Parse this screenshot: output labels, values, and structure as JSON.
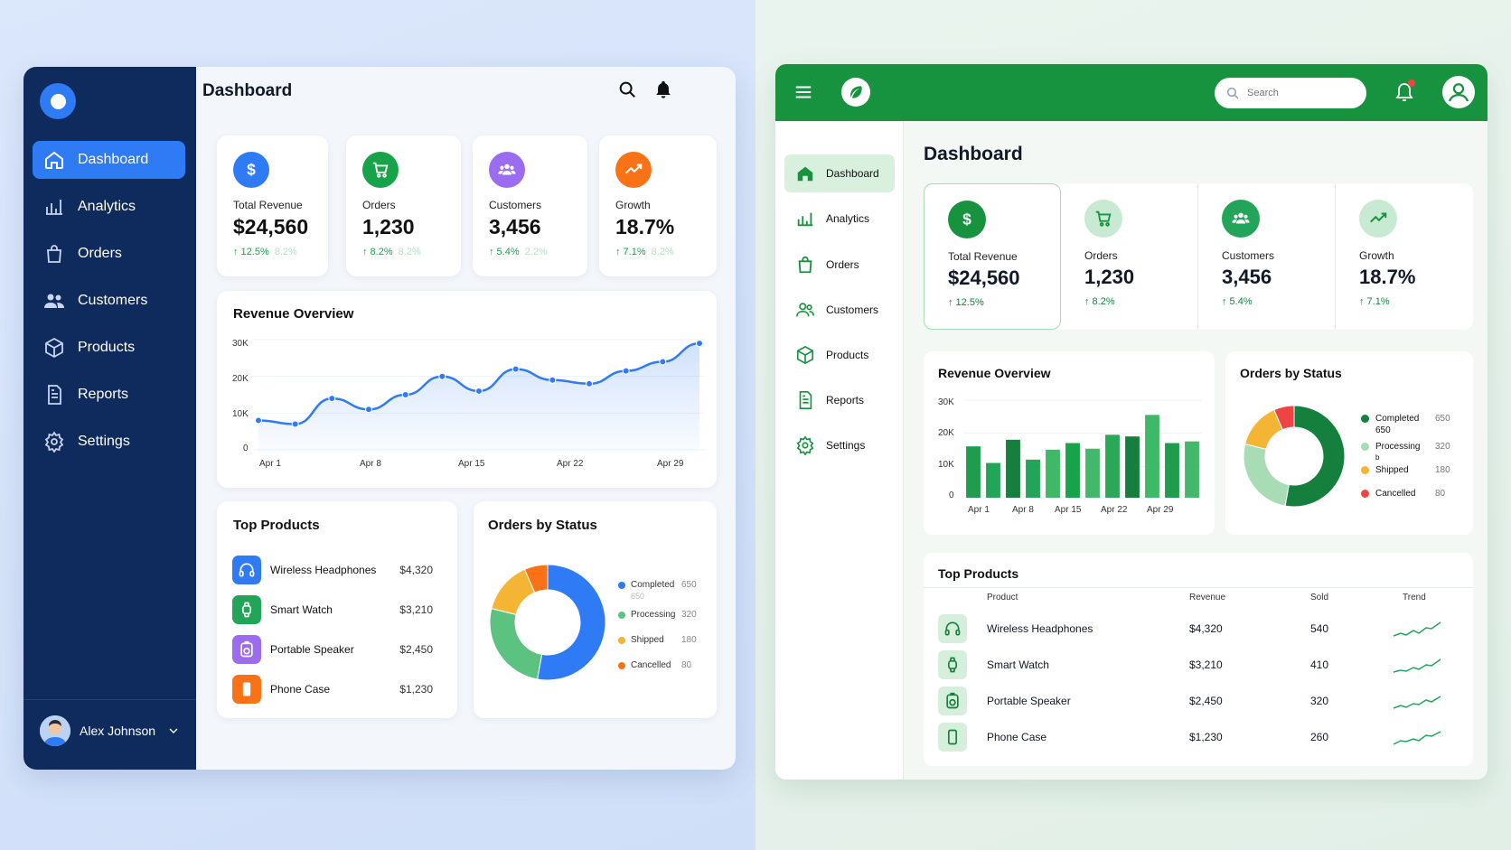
{
  "left": {
    "title": "Dashboard",
    "nav": [
      {
        "label": "Dashboard",
        "icon": "home-icon"
      },
      {
        "label": "Analytics",
        "icon": "bar-chart-icon"
      },
      {
        "label": "Orders",
        "icon": "bag-icon"
      },
      {
        "label": "Customers",
        "icon": "users-icon"
      },
      {
        "label": "Products",
        "icon": "box-icon"
      },
      {
        "label": "Reports",
        "icon": "document-icon"
      },
      {
        "label": "Settings",
        "icon": "gear-icon"
      }
    ],
    "user": "Alex Johnson",
    "stats": [
      {
        "label": "Total Revenue",
        "value": "$24,560",
        "change": "↑ 12.5%",
        "faded": "8.2%",
        "color": "#2f7bf5",
        "icon": "dollar-icon"
      },
      {
        "label": "Orders",
        "value": "1,230",
        "change": "↑ 8.2%",
        "faded": "8.2%",
        "color": "#16a34a",
        "icon": "cart-icon"
      },
      {
        "label": "Customers",
        "value": "3,456",
        "change": "↑ 5.4%",
        "faded": "2.2%",
        "color": "#9b6cf0",
        "icon": "users-icon"
      },
      {
        "label": "Growth",
        "value": "18.7%",
        "change": "↑ 7.1%",
        "faded": "8.2%",
        "color": "#f97316",
        "icon": "trend-icon"
      }
    ],
    "revenue": {
      "title": "Revenue Overview",
      "yticks": [
        "30K",
        "20K",
        "10K",
        "0"
      ],
      "xticks": [
        "Apr 1",
        "Apr 8",
        "Apr 15",
        "Apr 22",
        "Apr 29"
      ]
    },
    "top_products": {
      "title": "Top Products",
      "items": [
        {
          "name": "Wireless Headphones",
          "price": "$4,320",
          "color": "#2f7bf5",
          "icon": "headphones-icon"
        },
        {
          "name": "Smart Watch",
          "price": "$3,210",
          "color": "#22a559",
          "icon": "watch-icon"
        },
        {
          "name": "Portable Speaker",
          "price": "$2,450",
          "color": "#9b6cf0",
          "icon": "speaker-icon"
        },
        {
          "name": "Phone Case",
          "price": "$1,230",
          "color": "#f97316",
          "icon": "phone-icon"
        }
      ]
    },
    "orders_status": {
      "title": "Orders by Status",
      "legend": [
        {
          "label": "Completed",
          "value": "650",
          "extra": "650",
          "color": "#2f7bf5"
        },
        {
          "label": "Processing",
          "value": "320",
          "color": "#5cc27f"
        },
        {
          "label": "Shipped",
          "value": "180",
          "color": "#f5b534"
        },
        {
          "label": "Cancelled",
          "value": "80",
          "color": "#f97316"
        }
      ]
    }
  },
  "right": {
    "title": "Dashboard",
    "search_placeholder": "Search",
    "nav": [
      {
        "label": "Dashboard",
        "icon": "home-icon"
      },
      {
        "label": "Analytics",
        "icon": "bar-chart-icon"
      },
      {
        "label": "Orders",
        "icon": "bag-icon"
      },
      {
        "label": "Customers",
        "icon": "users-icon"
      },
      {
        "label": "Products",
        "icon": "box-icon"
      },
      {
        "label": "Reports",
        "icon": "document-icon"
      },
      {
        "label": "Settings",
        "icon": "gear-icon"
      }
    ],
    "stats": [
      {
        "label": "Total Revenue",
        "value": "$24,560",
        "change": "↑ 12.5%",
        "icon": "dollar-icon"
      },
      {
        "label": "Orders",
        "value": "1,230",
        "change": "↑ 8.2%",
        "icon": "cart-icon"
      },
      {
        "label": "Customers",
        "value": "3,456",
        "change": "↑ 5.4%",
        "icon": "users-icon"
      },
      {
        "label": "Growth",
        "value": "18.7%",
        "change": "↑ 7.1%",
        "icon": "trend-icon"
      }
    ],
    "revenue": {
      "title": "Revenue Overview",
      "yticks": [
        "30K",
        "20K",
        "10K",
        "0"
      ],
      "xticks": [
        "Apr 1",
        "Apr 8",
        "Apr 15",
        "Apr 22",
        "Apr 29"
      ]
    },
    "orders_status": {
      "title": "Orders by Status",
      "legend": [
        {
          "label": "Completed",
          "value": "650",
          "extra": "650",
          "color": "#15803d"
        },
        {
          "label": "Processing",
          "value": "320",
          "color": "#a7dcb4"
        },
        {
          "label": "Shipped",
          "value": "180",
          "extra": "b",
          "color": "#f5b534"
        },
        {
          "label": "Cancelled",
          "value": "80",
          "color": "#ef4444"
        }
      ]
    },
    "top_products": {
      "title": "Top Products",
      "headers": {
        "product": "Product",
        "revenue": "Revenue",
        "sold": "Sold",
        "trend": "Trend"
      },
      "rows": [
        {
          "name": "Wireless Headphones",
          "revenue": "$4,320",
          "sold": "540",
          "icon": "headphones-icon"
        },
        {
          "name": "Smart Watch",
          "revenue": "$3,210",
          "sold": "410",
          "icon": "watch-icon"
        },
        {
          "name": "Portable Speaker",
          "revenue": "$2,450",
          "sold": "320",
          "icon": "speaker-icon"
        },
        {
          "name": "Phone Case",
          "revenue": "$1,230",
          "sold": "260",
          "icon": "phone-icon"
        }
      ]
    }
  },
  "chart_data": [
    {
      "type": "line",
      "title": "Revenue Overview",
      "x": [
        "Apr 1",
        "Apr 4",
        "Apr 7",
        "Apr 10",
        "Apr 13",
        "Apr 16",
        "Apr 19",
        "Apr 22",
        "Apr 25",
        "Apr 27",
        "Apr 28",
        "Apr 31",
        "Apr 35"
      ],
      "y": [
        9000,
        8000,
        15000,
        12000,
        16000,
        21000,
        17000,
        23000,
        20000,
        19000,
        22500,
        25000,
        30000
      ],
      "yticks": [
        "30K",
        "20K",
        "10K",
        "0"
      ],
      "ylim": [
        0,
        32000
      ]
    },
    {
      "type": "pie",
      "title": "Orders by Status",
      "labels": [
        "Completed",
        "Processing",
        "Shipped",
        "Cancelled"
      ],
      "values": [
        650,
        320,
        180,
        80
      ]
    },
    {
      "type": "bar",
      "title": "Revenue Overview",
      "values": [
        15500,
        10500,
        17500,
        11500,
        14500,
        16500,
        14800,
        19000,
        18500,
        25000,
        16500,
        17000
      ],
      "yticks": [
        "30K",
        "20K",
        "10K",
        "0"
      ],
      "ylim": [
        0,
        30000
      ]
    },
    {
      "type": "pie",
      "title": "Orders by Status",
      "labels": [
        "Completed",
        "Processing",
        "Shipped",
        "Cancelled"
      ],
      "values": [
        650,
        320,
        180,
        80
      ]
    }
  ]
}
